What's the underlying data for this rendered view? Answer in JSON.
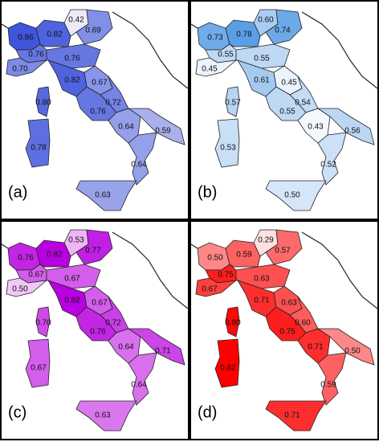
{
  "panels": [
    {
      "label": "(a)",
      "colors": [
        "#eaeaf8",
        "#3f55dc"
      ],
      "values": [
        0.86,
        0.82,
        0.42,
        0.69,
        0.76,
        0.7,
        0.76,
        0.82,
        0.67,
        0.72,
        0.76,
        0.8,
        0.78,
        0.64,
        0.59,
        0.64,
        0.63
      ],
      "value_labels": [
        "0.86",
        "0.82",
        "0.42",
        "0.69",
        "0.76",
        "0.70",
        "0.76",
        "0.82",
        "0.67",
        "0.72",
        "0.76",
        "0.80",
        "0.78",
        "0.64",
        "0.59",
        "0.64",
        "0.63"
      ]
    },
    {
      "label": "(b)",
      "colors": [
        "#f4f8fd",
        "#5a9fe6"
      ],
      "values": [
        0.73,
        0.78,
        0.6,
        0.74,
        0.55,
        0.45,
        0.55,
        0.61,
        0.45,
        0.54,
        0.55,
        0.57,
        0.53,
        0.43,
        0.56,
        0.52,
        0.5
      ],
      "value_labels": [
        "0.73",
        "0.78",
        "0.60",
        "0.74",
        "0.55",
        "0.45",
        "0.55",
        "0.61",
        "0.45",
        "0.54",
        "0.55",
        "0.57",
        "0.53",
        "0.43",
        "0.56",
        "0.52",
        "0.50"
      ]
    },
    {
      "label": "(c)",
      "colors": [
        "#f2c8f8",
        "#b800e0"
      ],
      "values": [
        0.76,
        0.82,
        0.53,
        0.77,
        0.67,
        0.5,
        0.67,
        0.82,
        0.67,
        0.72,
        0.76,
        0.7,
        0.67,
        0.64,
        0.71,
        0.64,
        0.63
      ],
      "value_labels": [
        "0.76",
        "0.82",
        "0.53",
        "0.77",
        "0.67",
        "0.50",
        "0.67",
        "0.82",
        "0.67",
        "0.72",
        "0.76",
        "0.70",
        "0.67",
        "0.64",
        "0.71",
        "0.64",
        "0.63"
      ]
    },
    {
      "label": "(d)",
      "colors": [
        "#fde0e0",
        "#ff0000"
      ],
      "values": [
        0.5,
        0.59,
        0.29,
        0.57,
        0.75,
        0.67,
        0.63,
        0.71,
        0.63,
        0.6,
        0.75,
        0.8,
        0.82,
        0.71,
        0.5,
        0.59,
        0.71
      ],
      "value_labels": [
        "0.50",
        "0.59",
        "0.29",
        "0.57",
        "0.75",
        "0.67",
        "0.63",
        "0.71",
        "0.63",
        "0.60",
        "0.75",
        "0.80",
        "0.82",
        "0.71",
        "0.50",
        "0.59",
        "0.71"
      ]
    }
  ]
}
